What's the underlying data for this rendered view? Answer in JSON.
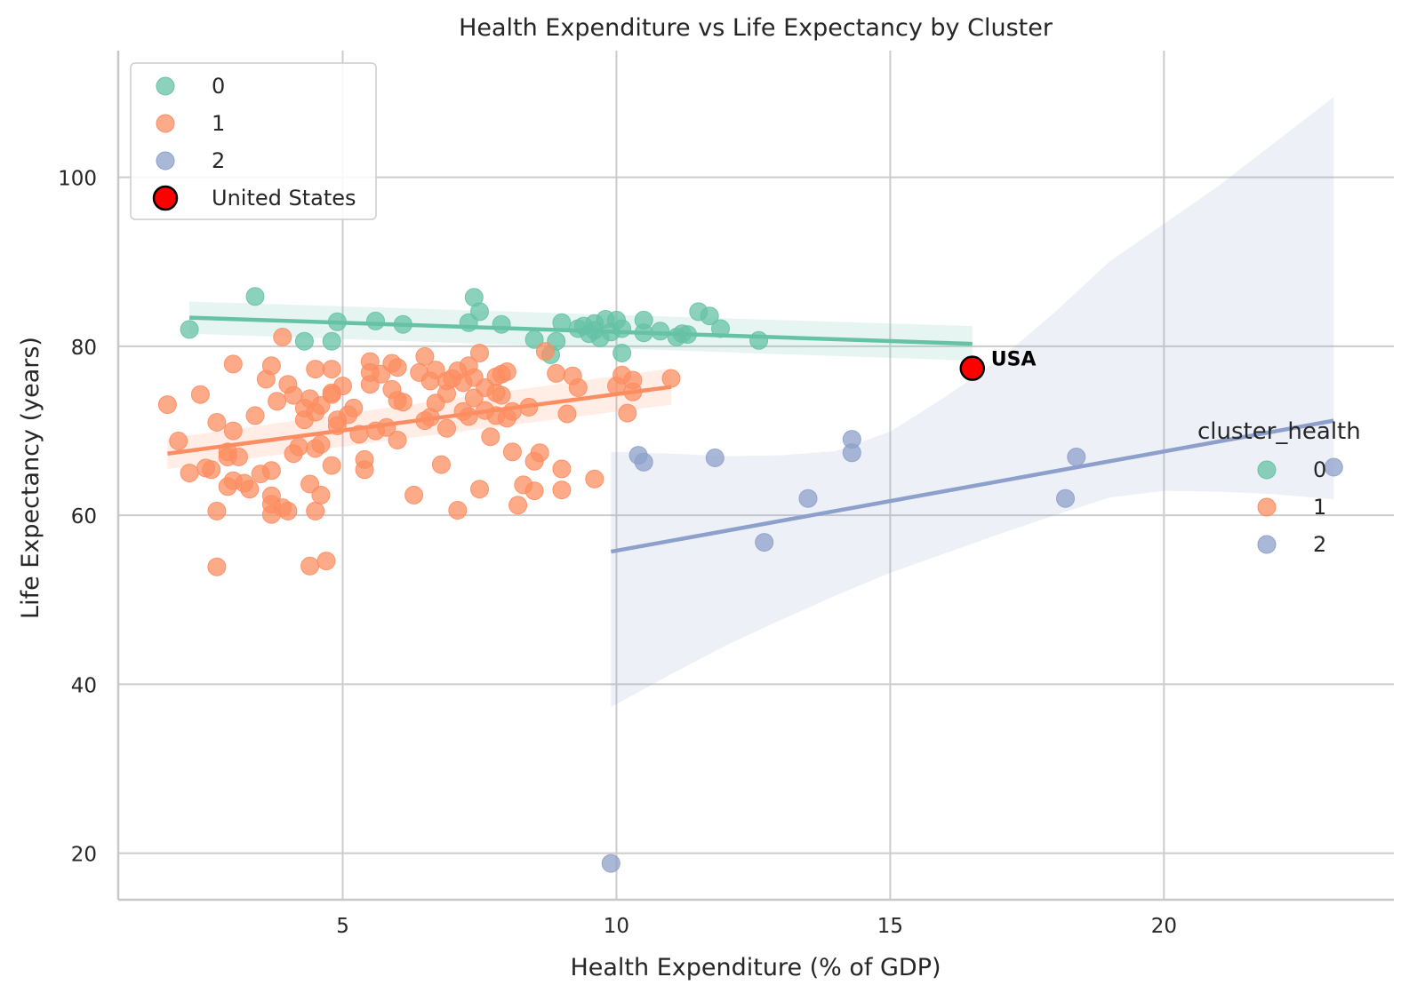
{
  "chart_data": {
    "type": "scatter",
    "title": "Health Expenditure vs Life Expectancy by Cluster",
    "xlabel": "Health Expenditure (% of GDP)",
    "ylabel": "Life Expectancy (years)",
    "xlim": [
      0.9,
      24.2
    ],
    "ylim": [
      14.5,
      115
    ],
    "x_ticks": [
      5,
      10,
      15,
      20
    ],
    "y_ticks": [
      20,
      40,
      60,
      80,
      100
    ],
    "grid": true,
    "legend_inner": {
      "placement": "upper-left",
      "entries": [
        {
          "label": "0",
          "color": "#66c2a5"
        },
        {
          "label": "1",
          "color": "#fc8d62"
        },
        {
          "label": "2",
          "color": "#8da0cb"
        },
        {
          "label": "United States",
          "color": "#ff0000"
        }
      ]
    },
    "legend_outer": {
      "placement": "right",
      "title": "cluster_health",
      "entries": [
        {
          "label": "0",
          "color": "#66c2a5"
        },
        {
          "label": "1",
          "color": "#fc8d62"
        },
        {
          "label": "2",
          "color": "#8da0cb"
        }
      ]
    },
    "highlight": {
      "name": "United States",
      "label": "USA",
      "x": 16.5,
      "y": 77.4,
      "color": "#ff0000"
    },
    "series": [
      {
        "name": "0",
        "color": "#66c2a5",
        "points": [
          [
            2.2,
            82
          ],
          [
            3.4,
            85.9
          ],
          [
            4.3,
            80.6
          ],
          [
            4.8,
            80.6
          ],
          [
            4.9,
            82.9
          ],
          [
            5.6,
            83
          ],
          [
            6.1,
            82.6
          ],
          [
            7.3,
            82.8
          ],
          [
            7.4,
            85.8
          ],
          [
            7.5,
            84.1
          ],
          [
            7.9,
            82.6
          ],
          [
            8.5,
            80.8
          ],
          [
            8.8,
            79
          ],
          [
            8.9,
            80.6
          ],
          [
            9,
            82.8
          ],
          [
            9.3,
            82.1
          ],
          [
            9.4,
            82.4
          ],
          [
            9.5,
            81.5
          ],
          [
            9.6,
            81.9
          ],
          [
            9.6,
            82.7
          ],
          [
            9.7,
            81
          ],
          [
            9.8,
            83.2
          ],
          [
            9.9,
            81.7
          ],
          [
            10,
            83.1
          ],
          [
            10.1,
            82.1
          ],
          [
            10.1,
            79.2
          ],
          [
            10.5,
            81.6
          ],
          [
            10.5,
            83.1
          ],
          [
            10.8,
            81.8
          ],
          [
            11.1,
            81.1
          ],
          [
            11.2,
            81.5
          ],
          [
            11.3,
            81.4
          ],
          [
            11.5,
            84.1
          ],
          [
            11.7,
            83.6
          ],
          [
            11.9,
            82.1
          ],
          [
            12.6,
            80.7
          ]
        ],
        "fit_line": [
          [
            2.2,
            83.4
          ],
          [
            16.5,
            80.3
          ]
        ],
        "ci_band": {
          "x": [
            2.2,
            16.5
          ],
          "upper": [
            85.3,
            82.4
          ],
          "lower": [
            81.5,
            78.3
          ]
        }
      },
      {
        "name": "1",
        "color": "#fc8d62",
        "points": [
          [
            1.8,
            73.1
          ],
          [
            2,
            68.8
          ],
          [
            2.2,
            65
          ],
          [
            2.4,
            74.3
          ],
          [
            2.5,
            65.6
          ],
          [
            2.6,
            65.4
          ],
          [
            2.7,
            60.5
          ],
          [
            2.7,
            71
          ],
          [
            2.7,
            53.9
          ],
          [
            2.9,
            67.5
          ],
          [
            2.9,
            66.9
          ],
          [
            2.9,
            63.4
          ],
          [
            3,
            77.9
          ],
          [
            3,
            64.1
          ],
          [
            3,
            70
          ],
          [
            3.1,
            66.9
          ],
          [
            3.2,
            63.8
          ],
          [
            3.3,
            63.1
          ],
          [
            3.4,
            71.8
          ],
          [
            3.5,
            64.9
          ],
          [
            3.6,
            76.1
          ],
          [
            3.7,
            62.3
          ],
          [
            3.7,
            61.3
          ],
          [
            3.7,
            60.1
          ],
          [
            3.7,
            65.3
          ],
          [
            3.7,
            77.7
          ],
          [
            3.8,
            73.5
          ],
          [
            3.9,
            60.9
          ],
          [
            3.9,
            81.1
          ],
          [
            4,
            75.5
          ],
          [
            4,
            60.5
          ],
          [
            4.1,
            74.2
          ],
          [
            4.1,
            67.3
          ],
          [
            4.2,
            68.1
          ],
          [
            4.3,
            71.3
          ],
          [
            4.3,
            72.7
          ],
          [
            4.4,
            54
          ],
          [
            4.4,
            73.8
          ],
          [
            4.4,
            63.7
          ],
          [
            4.5,
            60.5
          ],
          [
            4.5,
            77.3
          ],
          [
            4.5,
            67.9
          ],
          [
            4.5,
            72.2
          ],
          [
            4.6,
            73
          ],
          [
            4.6,
            68.4
          ],
          [
            4.6,
            62.4
          ],
          [
            4.7,
            54.6
          ],
          [
            4.8,
            74.3
          ],
          [
            4.8,
            74.5
          ],
          [
            4.8,
            77.3
          ],
          [
            4.8,
            65.9
          ],
          [
            4.9,
            71.3
          ],
          [
            4.9,
            70.6
          ],
          [
            5,
            75.3
          ],
          [
            5.1,
            71.9
          ],
          [
            5.2,
            72.7
          ],
          [
            5.3,
            69.6
          ],
          [
            5.4,
            66.6
          ],
          [
            5.4,
            65.4
          ],
          [
            5.5,
            78.2
          ],
          [
            5.5,
            76.9
          ],
          [
            5.5,
            75.5
          ],
          [
            5.6,
            70
          ],
          [
            5.7,
            76.7
          ],
          [
            5.8,
            70.4
          ],
          [
            5.9,
            74.9
          ],
          [
            5.9,
            78
          ],
          [
            6,
            77.5
          ],
          [
            6,
            68.9
          ],
          [
            6,
            73.6
          ],
          [
            6.1,
            73.4
          ],
          [
            6.3,
            62.4
          ],
          [
            6.4,
            76.9
          ],
          [
            6.5,
            78.8
          ],
          [
            6.5,
            71.2
          ],
          [
            6.6,
            71.6
          ],
          [
            6.6,
            75.9
          ],
          [
            6.7,
            77.2
          ],
          [
            6.7,
            73.3
          ],
          [
            6.8,
            66
          ],
          [
            6.9,
            74.4
          ],
          [
            6.9,
            75.9
          ],
          [
            6.9,
            70.3
          ],
          [
            7,
            76.2
          ],
          [
            7.1,
            77.1
          ],
          [
            7.1,
            60.6
          ],
          [
            7.2,
            75.7
          ],
          [
            7.2,
            72.3
          ],
          [
            7.3,
            77.7
          ],
          [
            7.3,
            71.7
          ],
          [
            7.4,
            73.9
          ],
          [
            7.4,
            76.3
          ],
          [
            7.5,
            79.2
          ],
          [
            7.5,
            63.1
          ],
          [
            7.6,
            75.1
          ],
          [
            7.6,
            72.4
          ],
          [
            7.7,
            69.3
          ],
          [
            7.8,
            71.8
          ],
          [
            7.8,
            76.4
          ],
          [
            7.8,
            74.5
          ],
          [
            7.9,
            76.7
          ],
          [
            7.9,
            74.2
          ],
          [
            8,
            77
          ],
          [
            8,
            71.5
          ],
          [
            8.1,
            72.3
          ],
          [
            8.1,
            67.5
          ],
          [
            8.2,
            61.2
          ],
          [
            8.3,
            63.6
          ],
          [
            8.4,
            72.8
          ],
          [
            8.5,
            66.4
          ],
          [
            8.5,
            62.9
          ],
          [
            8.6,
            67.4
          ],
          [
            8.7,
            79.4
          ],
          [
            8.9,
            76.8
          ],
          [
            9,
            65.5
          ],
          [
            9,
            63
          ],
          [
            9.1,
            72
          ],
          [
            9.2,
            76.5
          ],
          [
            9.3,
            75.1
          ],
          [
            9.6,
            64.3
          ],
          [
            10,
            75.3
          ],
          [
            10.1,
            76.6
          ],
          [
            10.2,
            72.1
          ],
          [
            10.3,
            76
          ],
          [
            10.3,
            74.6
          ],
          [
            11,
            76.2
          ]
        ],
        "fit_line": [
          [
            1.8,
            67.3
          ],
          [
            11,
            75.2
          ]
        ],
        "ci_band": {
          "x": [
            1.8,
            11
          ],
          "upper": [
            69.1,
            77.4
          ],
          "lower": [
            65.5,
            73.1
          ]
        }
      },
      {
        "name": "2",
        "color": "#8da0cb",
        "points": [
          [
            9.9,
            18.8
          ],
          [
            10.4,
            67.1
          ],
          [
            10.5,
            66.3
          ],
          [
            11.8,
            66.8
          ],
          [
            12.7,
            56.8
          ],
          [
            13.5,
            62
          ],
          [
            14.3,
            69
          ],
          [
            14.3,
            67.4
          ],
          [
            18.2,
            62
          ],
          [
            18.4,
            66.9
          ],
          [
            23.1,
            65.7
          ]
        ],
        "fit_line": [
          [
            9.9,
            55.7
          ],
          [
            23.1,
            71.2
          ]
        ],
        "ci_band": {
          "x": [
            9.9,
            11,
            12,
            13,
            14,
            15,
            16,
            17,
            18,
            19,
            20,
            21,
            22,
            23.1
          ],
          "upper": [
            67.5,
            67.3,
            67.0,
            67.1,
            67.6,
            69.9,
            74.0,
            78.5,
            84.0,
            90.0,
            94.5,
            99.0,
            104.0,
            109.5
          ],
          "lower": [
            37.3,
            41.2,
            44.6,
            47.6,
            50.5,
            53.2,
            55.5,
            57.8,
            60.0,
            62.1,
            62.9,
            62.8,
            62.5,
            61.9
          ]
        }
      }
    ]
  }
}
